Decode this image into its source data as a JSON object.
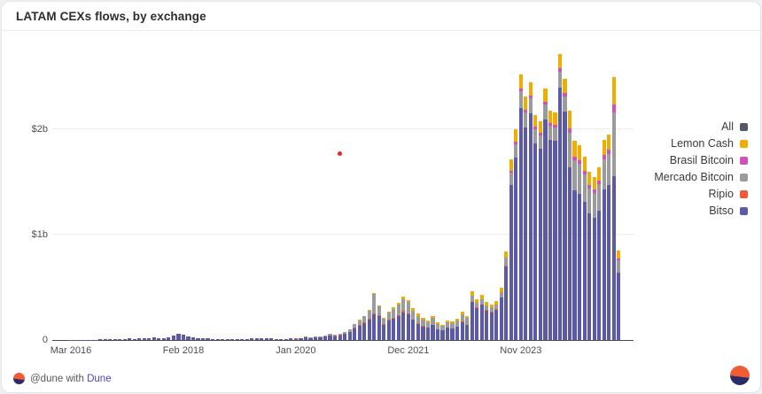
{
  "card": {
    "title": "LATAM CEXs flows, by exchange"
  },
  "footer": {
    "attribution_text": "@dune with",
    "attribution_brand": "Dune"
  },
  "legend": [
    {
      "label": "All",
      "color": "#555861"
    },
    {
      "label": "Lemon Cash",
      "color": "#f0ad00"
    },
    {
      "label": "Brasil Bitcoin",
      "color": "#d24fc0"
    },
    {
      "label": "Mercado Bitcoin",
      "color": "#9b9b9b"
    },
    {
      "label": "Ripio",
      "color": "#f15a36"
    },
    {
      "label": "Bitso",
      "color": "#5c5aa7"
    }
  ],
  "chart_data": {
    "type": "bar",
    "stacked": true,
    "title": "LATAM CEXs flows, by exchange",
    "unit": "USD millions per month",
    "x_start": "Mar 2016",
    "x_interval": "monthly",
    "x_ticks": [
      {
        "index": 0,
        "label": "Mar 2016"
      },
      {
        "index": 23,
        "label": "Feb 2018"
      },
      {
        "index": 46,
        "label": "Jan 2020"
      },
      {
        "index": 69,
        "label": "Dec 2021"
      },
      {
        "index": 92,
        "label": "Nov 2023"
      }
    ],
    "y_ticks": [
      {
        "value": 0,
        "label": "0"
      },
      {
        "value": 1000,
        "label": "$1b"
      },
      {
        "value": 2000,
        "label": "$2b"
      }
    ],
    "ymax": 2750,
    "grid": true,
    "legend_position": "right",
    "annotation_point": {
      "x_index": 55,
      "value": 1770,
      "color": "#e8241f"
    },
    "series": [
      {
        "name": "Bitso",
        "color": "#5c5aa7",
        "values": [
          2,
          2,
          3,
          3,
          4,
          4,
          5,
          5,
          6,
          7,
          9,
          11,
          14,
          12,
          17,
          20,
          16,
          22,
          18,
          15,
          26,
          42,
          55,
          48,
          30,
          22,
          18,
          15,
          13,
          11,
          10,
          10,
          12,
          10,
          9,
          9,
          11,
          13,
          17,
          21,
          17,
          14,
          12,
          11,
          11,
          13,
          12,
          16,
          22,
          19,
          24,
          27,
          31,
          42,
          37,
          46,
          58,
          74,
          110,
          135,
          160,
          195,
          240,
          225,
          145,
          185,
          200,
          225,
          265,
          245,
          190,
          155,
          130,
          115,
          140,
          102,
          90,
          115,
          108,
          124,
          168,
          143,
          360,
          305,
          335,
          280,
          265,
          289,
          400,
          700,
          1470,
          1730,
          2200,
          2020,
          2150,
          1870,
          1820,
          2090,
          1900,
          1890,
          2400,
          2170,
          1640,
          1420,
          1390,
          1310,
          1200,
          1160,
          1230,
          1430,
          1470,
          1560,
          640
        ]
      },
      {
        "name": "Ripio",
        "color": "#f15a36",
        "values": [
          0,
          0,
          0,
          0,
          0,
          0,
          0,
          0,
          0,
          0,
          0,
          0,
          0,
          0,
          0,
          0,
          0,
          0,
          0,
          0,
          0,
          0,
          0,
          0,
          0,
          0,
          0,
          0,
          0,
          0,
          0,
          0,
          0,
          0,
          0,
          0,
          0,
          0,
          0,
          0,
          0,
          0,
          0,
          0,
          0,
          0,
          1,
          1,
          1,
          1,
          1,
          1,
          2,
          2,
          2,
          2,
          3,
          4,
          5,
          6,
          6,
          8,
          10,
          8,
          5,
          6,
          7,
          8,
          9,
          8,
          6,
          5,
          4,
          4,
          5,
          3,
          3,
          4,
          3,
          4,
          5,
          4,
          5,
          4,
          4,
          4,
          3,
          3,
          4,
          5,
          0,
          0,
          0,
          0,
          0,
          0,
          0,
          0,
          0,
          0,
          0,
          0,
          0,
          0,
          0,
          0,
          0,
          0,
          0,
          0,
          0,
          0,
          0
        ]
      },
      {
        "name": "Mercado Bitcoin",
        "color": "#9b9b9b",
        "values": [
          0,
          0,
          0,
          0,
          0,
          0,
          0,
          0,
          0,
          0,
          0,
          0,
          0,
          0,
          0,
          0,
          0,
          0,
          0,
          0,
          0,
          0,
          0,
          0,
          0,
          0,
          0,
          0,
          0,
          0,
          0,
          0,
          0,
          0,
          0,
          0,
          0,
          0,
          0,
          0,
          0,
          0,
          0,
          0,
          0,
          0,
          3,
          4,
          7,
          6,
          7,
          8,
          9,
          12,
          11,
          14,
          17,
          22,
          33,
          45,
          58,
          78,
          185,
          85,
          52,
          68,
          90,
          100,
          115,
          105,
          80,
          70,
          60,
          52,
          62,
          46,
          40,
          50,
          48,
          54,
          72,
          62,
          55,
          46,
          52,
          44,
          42,
          45,
          54,
          75,
          120,
          130,
          160,
          140,
          150,
          130,
          125,
          145,
          135,
          130,
          150,
          145,
          330,
          290,
          280,
          260,
          240,
          235,
          250,
          290,
          295,
          600,
          120
        ]
      },
      {
        "name": "Brasil Bitcoin",
        "color": "#d24fc0",
        "values": [
          0,
          0,
          0,
          0,
          0,
          0,
          0,
          0,
          0,
          0,
          0,
          0,
          0,
          0,
          0,
          0,
          0,
          0,
          0,
          0,
          0,
          0,
          0,
          0,
          0,
          0,
          0,
          0,
          0,
          0,
          0,
          0,
          0,
          0,
          0,
          0,
          0,
          0,
          0,
          0,
          0,
          0,
          0,
          0,
          0,
          0,
          0,
          0,
          0,
          0,
          0,
          0,
          0,
          0,
          0,
          0,
          0,
          0,
          0,
          0,
          0,
          0,
          0,
          0,
          0,
          0,
          0,
          0,
          0,
          0,
          0,
          0,
          0,
          0,
          0,
          0,
          0,
          0,
          0,
          0,
          0,
          0,
          0,
          0,
          0,
          0,
          0,
          0,
          0,
          0,
          20,
          20,
          30,
          30,
          25,
          25,
          25,
          30,
          25,
          25,
          30,
          30,
          40,
          35,
          35,
          35,
          35,
          35,
          35,
          40,
          40,
          80,
          15
        ]
      },
      {
        "name": "Lemon Cash",
        "color": "#f0ad00",
        "values": [
          0,
          0,
          0,
          0,
          0,
          0,
          0,
          0,
          0,
          0,
          0,
          0,
          0,
          0,
          0,
          0,
          0,
          0,
          0,
          0,
          0,
          0,
          0,
          0,
          0,
          0,
          0,
          0,
          0,
          0,
          0,
          0,
          0,
          0,
          0,
          0,
          0,
          0,
          0,
          0,
          0,
          0,
          0,
          0,
          0,
          0,
          0,
          0,
          0,
          0,
          0,
          0,
          0,
          0,
          0,
          0,
          0,
          0,
          2,
          4,
          6,
          9,
          15,
          12,
          8,
          11,
          13,
          17,
          21,
          22,
          24,
          20,
          16,
          14,
          18,
          14,
          12,
          16,
          16,
          18,
          25,
          21,
          40,
          35,
          39,
          32,
          30,
          33,
          42,
          60,
          110,
          120,
          130,
          120,
          125,
          115,
          110,
          125,
          120,
          115,
          140,
          135,
          170,
          145,
          145,
          135,
          125,
          120,
          125,
          140,
          145,
          260,
          75
        ]
      }
    ]
  }
}
